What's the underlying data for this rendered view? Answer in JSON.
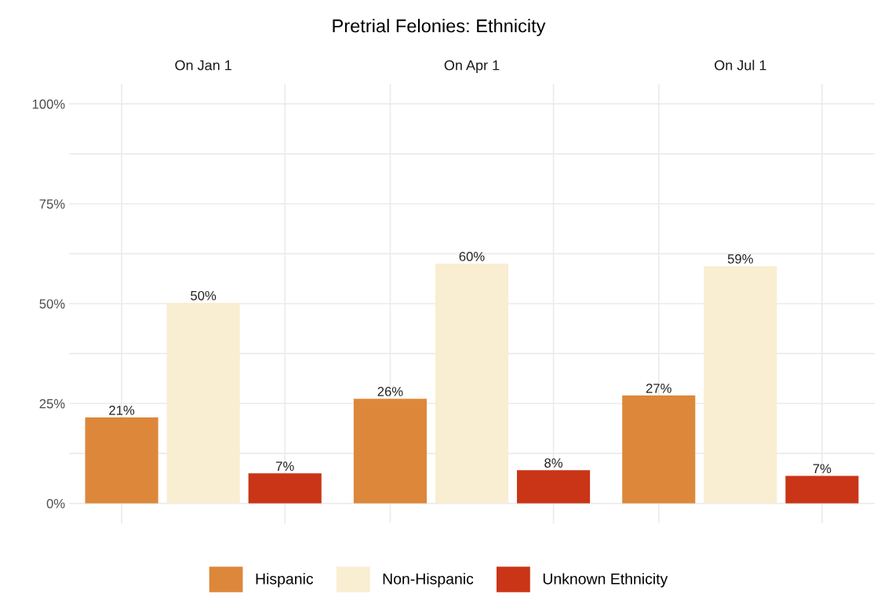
{
  "chart_data": {
    "type": "bar",
    "title": "Pretrial Felonies: Ethnicity",
    "categories": [
      "On Jan 1",
      "On Apr 1",
      "On Jul 1"
    ],
    "ylim": [
      -5,
      105
    ],
    "yticks": [
      {
        "value": 0,
        "label": "0%"
      },
      {
        "value": 12.5,
        "label": null
      },
      {
        "value": 25,
        "label": "25%"
      },
      {
        "value": 37.5,
        "label": null
      },
      {
        "value": 50,
        "label": "50%"
      },
      {
        "value": 62.5,
        "label": null
      },
      {
        "value": 75,
        "label": "75%"
      },
      {
        "value": 87.5,
        "label": null
      },
      {
        "value": 100,
        "label": "100%"
      }
    ],
    "grid": true,
    "legend": "bottom",
    "series": [
      {
        "name": "Hispanic",
        "color": "#dd873b",
        "values": [
          21.5,
          26.2,
          27.0
        ],
        "value_labels": [
          "21%",
          "26%",
          "27%"
        ]
      },
      {
        "name": "Non-Hispanic",
        "color": "#f9edd2",
        "values": [
          50.2,
          60.0,
          59.4
        ],
        "value_labels": [
          "50%",
          "60%",
          "59%"
        ]
      },
      {
        "name": "Unknown Ethnicity",
        "color": "#c93516",
        "values": [
          7.5,
          8.3,
          6.9
        ],
        "value_labels": [
          "7%",
          "8%",
          "7%"
        ]
      }
    ]
  }
}
